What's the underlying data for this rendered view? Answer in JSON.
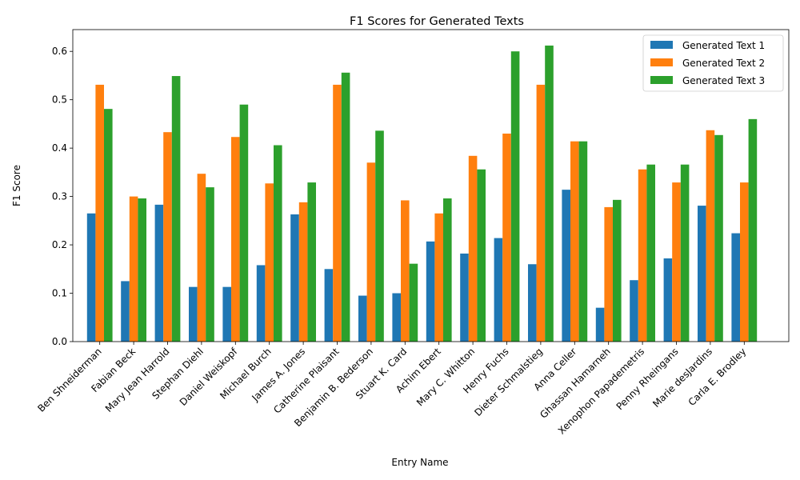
{
  "chart_data": {
    "type": "bar",
    "title": "F1 Scores for Generated Texts",
    "xlabel": "Entry Name",
    "ylabel": "F1 Score",
    "ylim": [
      0,
      0.645
    ],
    "yticks": [
      "0.0",
      "0.1",
      "0.2",
      "0.3",
      "0.4",
      "0.5",
      "0.6"
    ],
    "grid": false,
    "legend_position": "top-right",
    "categories": [
      "Ben Shneiderman",
      "Fabian Beck",
      "Mary Jean Harrold",
      "Stephan Diehl",
      "Daniel Weiskopf",
      "Michael Burch",
      "James A. Jones",
      "Catherine Plaisant",
      "Benjamin B. Bederson",
      "Stuart K. Card",
      "Achim Ebert",
      "Mary C. Whitton",
      "Henry Fuchs",
      "Dieter Schmalstieg",
      "Anna Celler",
      "Ghassan Hamarneh",
      "Xenophon Papademetris",
      "Penny Rheingans",
      "Marie desJardins",
      "Carla E. Brodley"
    ],
    "series": [
      {
        "name": "Generated Text 1",
        "color": "#1f77b4",
        "values": [
          0.265,
          0.125,
          0.283,
          0.113,
          0.113,
          0.158,
          0.263,
          0.15,
          0.095,
          0.1,
          0.207,
          0.182,
          0.214,
          0.16,
          0.314,
          0.07,
          0.127,
          0.172,
          0.281,
          0.224
        ]
      },
      {
        "name": "Generated Text 2",
        "color": "#ff7f0e",
        "values": [
          0.531,
          0.3,
          0.433,
          0.347,
          0.423,
          0.327,
          0.288,
          0.531,
          0.37,
          0.292,
          0.265,
          0.384,
          0.43,
          0.531,
          0.414,
          0.278,
          0.356,
          0.329,
          0.437,
          0.329
        ]
      },
      {
        "name": "Generated Text 3",
        "color": "#2ca02c",
        "values": [
          0.481,
          0.296,
          0.549,
          0.319,
          0.49,
          0.406,
          0.329,
          0.556,
          0.436,
          0.161,
          0.296,
          0.356,
          0.6,
          0.612,
          0.414,
          0.293,
          0.366,
          0.366,
          0.427,
          0.46
        ]
      }
    ]
  }
}
